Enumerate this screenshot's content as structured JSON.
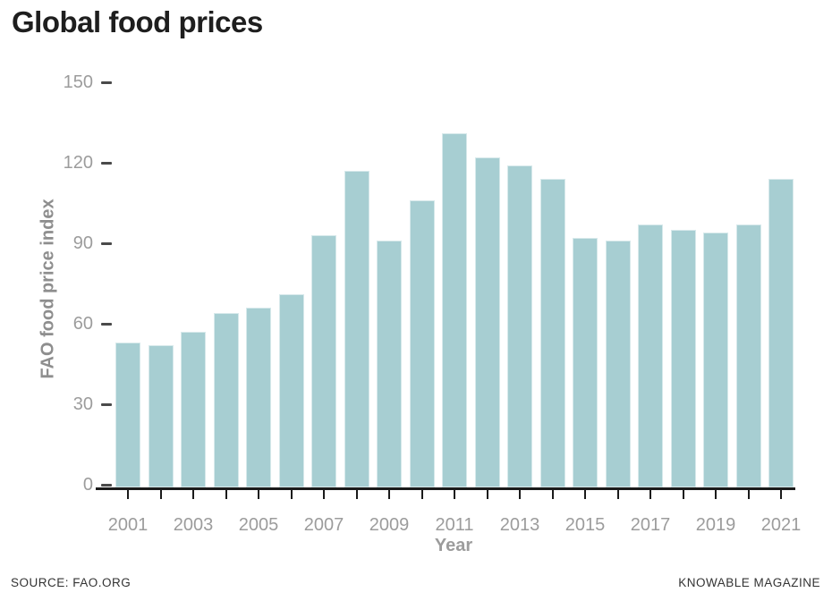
{
  "title": "Global food prices",
  "chart_data": {
    "type": "bar",
    "title": "Global food prices",
    "xlabel": "Year",
    "ylabel": "FAO food price index",
    "x": [
      2001,
      2002,
      2003,
      2004,
      2005,
      2006,
      2007,
      2008,
      2009,
      2010,
      2011,
      2012,
      2013,
      2014,
      2015,
      2016,
      2017,
      2018,
      2019,
      2020,
      2021
    ],
    "values": [
      54,
      53,
      58,
      65,
      67,
      72,
      94,
      118,
      92,
      107,
      132,
      123,
      120,
      115,
      93,
      92,
      98,
      96,
      95,
      98,
      115
    ],
    "ylim": [
      0,
      150
    ],
    "yticks": [
      0,
      30,
      60,
      90,
      120,
      150
    ],
    "xtick_labels": [
      "2001",
      "2003",
      "2005",
      "2007",
      "2009",
      "2011",
      "2013",
      "2015",
      "2017",
      "2019",
      "2021"
    ],
    "grid": false,
    "legend": null,
    "bar_color": "#a7ced2",
    "axis_color": "#1b1b1b",
    "label_color": "#9c9c9c"
  },
  "footer": {
    "source": "SOURCE: FAO.ORG",
    "brand": "KNOWABLE MAGAZINE"
  }
}
